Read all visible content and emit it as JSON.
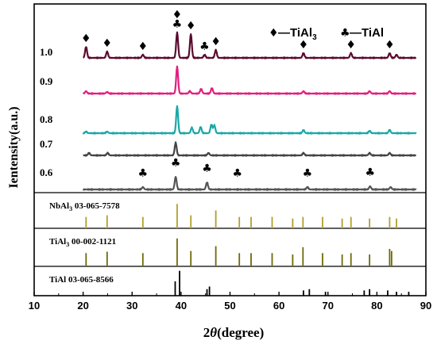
{
  "chart_data": {
    "type": "line",
    "xlabel_prefix": "2",
    "xlabel_symbol": "θ",
    "xlabel_suffix": "(degree)",
    "ylabel": "Ientensity(a.u.)",
    "xlim": [
      10,
      90
    ],
    "xticks": [
      "10",
      "20",
      "30",
      "40",
      "50",
      "60",
      "70",
      "80",
      "90"
    ],
    "legend": [
      {
        "symbol": "♦",
        "text": "—TiAl",
        "sub": "3"
      },
      {
        "symbol": "♣",
        "text": "—TiAl",
        "sub": ""
      }
    ],
    "series": [
      {
        "name": "1.0",
        "color": "#5c0a2e",
        "noise_amp": 0.6,
        "peaks": [
          [
            20.6,
            14
          ],
          [
            24.9,
            8
          ],
          [
            32.2,
            4
          ],
          [
            39.2,
            32
          ],
          [
            42.0,
            30
          ],
          [
            44.8,
            4
          ],
          [
            47.1,
            10
          ],
          [
            65.0,
            6
          ],
          [
            74.7,
            6
          ],
          [
            82.6,
            6
          ],
          [
            84.0,
            4
          ]
        ]
      },
      {
        "name": "0.9",
        "color": "#e0207e",
        "noise_amp": 0.6,
        "peaks": [
          [
            20.6,
            3
          ],
          [
            24.9,
            2
          ],
          [
            39.2,
            34
          ],
          [
            41.8,
            3
          ],
          [
            44.1,
            6
          ],
          [
            46.3,
            7
          ],
          [
            65.0,
            3
          ],
          [
            78.5,
            3
          ],
          [
            82.6,
            3
          ]
        ]
      },
      {
        "name": "0.8",
        "color": "#1aa8a8",
        "noise_amp": 0.6,
        "peaks": [
          [
            20.6,
            2
          ],
          [
            24.9,
            2
          ],
          [
            39.2,
            34
          ],
          [
            42.2,
            7
          ],
          [
            44.0,
            8
          ],
          [
            46.2,
            11
          ],
          [
            46.8,
            10
          ],
          [
            65.0,
            4
          ],
          [
            78.5,
            3
          ],
          [
            82.6,
            4
          ]
        ]
      },
      {
        "name": "0.7",
        "color": "#444444",
        "noise_amp": 0.6,
        "peaks": [
          [
            21.2,
            3
          ],
          [
            25.0,
            3
          ],
          [
            38.9,
            16
          ],
          [
            45.6,
            3
          ],
          [
            65.0,
            3
          ],
          [
            78.5,
            3
          ],
          [
            82.6,
            3
          ]
        ]
      },
      {
        "name": "0.6",
        "color": "#555555",
        "noise_amp": 0.7,
        "peaks": [
          [
            32.2,
            3
          ],
          [
            38.9,
            16
          ],
          [
            45.3,
            9
          ],
          [
            65.8,
            3
          ],
          [
            78.6,
            4
          ],
          [
            82.8,
            3
          ]
        ]
      }
    ],
    "series_markers": [
      {
        "series": "1.0",
        "symbol": "♦",
        "x": [
          20.6,
          24.9,
          32.2,
          42.0,
          47.1,
          65.0,
          74.7,
          82.6
        ]
      },
      {
        "series": "1.0",
        "symbol": "♣",
        "x": [
          39.2,
          44.8
        ]
      },
      {
        "series": "1.0",
        "symbol": "♦",
        "x": [
          39.2
        ],
        "stack": true
      },
      {
        "series": "0.6",
        "symbol": "♣",
        "x": [
          32.2,
          38.9,
          45.3,
          51.5,
          65.8,
          78.6
        ]
      }
    ],
    "references": [
      {
        "label": "NbAl",
        "sub": "3",
        "code": "03-065-7578",
        "color": "#b0a02a",
        "lines": [
          [
            20.6,
            0.35
          ],
          [
            24.9,
            0.4
          ],
          [
            32.2,
            0.35
          ],
          [
            39.2,
            0.75
          ],
          [
            42.0,
            0.4
          ],
          [
            47.1,
            0.55
          ],
          [
            51.9,
            0.35
          ],
          [
            54.3,
            0.35
          ],
          [
            58.6,
            0.35
          ],
          [
            62.8,
            0.3
          ],
          [
            64.9,
            0.35
          ],
          [
            68.9,
            0.35
          ],
          [
            72.9,
            0.3
          ],
          [
            74.7,
            0.35
          ],
          [
            78.5,
            0.3
          ],
          [
            82.6,
            0.35
          ],
          [
            84.0,
            0.3
          ]
        ]
      },
      {
        "label": "TiAl",
        "sub": "3",
        "code": "00-002-1121",
        "color": "#6e6a08",
        "lines": [
          [
            20.6,
            0.38
          ],
          [
            24.9,
            0.42
          ],
          [
            32.2,
            0.38
          ],
          [
            39.2,
            0.8
          ],
          [
            42.0,
            0.44
          ],
          [
            47.1,
            0.58
          ],
          [
            51.9,
            0.38
          ],
          [
            54.3,
            0.38
          ],
          [
            58.6,
            0.38
          ],
          [
            62.8,
            0.34
          ],
          [
            64.9,
            0.55
          ],
          [
            68.9,
            0.38
          ],
          [
            72.9,
            0.34
          ],
          [
            74.7,
            0.38
          ],
          [
            78.5,
            0.34
          ],
          [
            82.6,
            0.5
          ],
          [
            83.0,
            0.44
          ]
        ]
      },
      {
        "label": "TiAl",
        "sub": "",
        "code": "03-065-8566",
        "color": "#000000",
        "lines": [
          [
            38.8,
            0.55
          ],
          [
            39.7,
            0.95
          ],
          [
            45.3,
            0.25
          ],
          [
            45.8,
            0.35
          ],
          [
            65.0,
            0.2
          ],
          [
            66.2,
            0.25
          ],
          [
            69.5,
            0.15
          ],
          [
            77.4,
            0.2
          ],
          [
            78.5,
            0.25
          ],
          [
            82.2,
            0.2
          ],
          [
            84.0,
            0.15
          ],
          [
            86.5,
            0.15
          ]
        ]
      }
    ]
  }
}
